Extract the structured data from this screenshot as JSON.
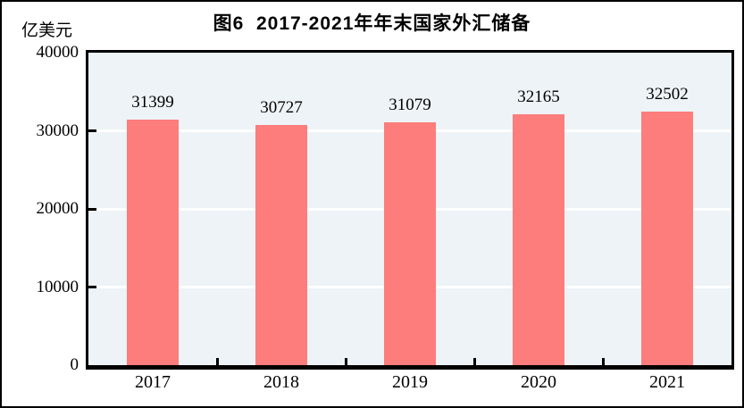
{
  "figure": {
    "title": "图6  2017-2021年年末国家外汇储备",
    "unit_label": "亿美元"
  },
  "chart_data": {
    "type": "bar",
    "title": "图6  2017-2021年年末国家外汇储备",
    "unit": "亿美元",
    "categories": [
      "2017",
      "2018",
      "2019",
      "2020",
      "2021"
    ],
    "values": [
      31399,
      30727,
      31079,
      32165,
      32502
    ],
    "data_labels": [
      31399,
      30727,
      31079,
      32165,
      32502
    ],
    "xlabel": "",
    "ylabel": "亿美元",
    "ylim": [
      0,
      40000
    ],
    "yticks": [
      0,
      10000,
      20000,
      30000,
      40000
    ],
    "grid": "horizontal white lines at 10000/20000/30000",
    "legend": "none",
    "colors": {
      "bar": "#FD7C7C",
      "plot_background": "#EDF3F7",
      "gridline": "#FFFFFF",
      "axis": "#000000",
      "text": "#000000"
    }
  }
}
